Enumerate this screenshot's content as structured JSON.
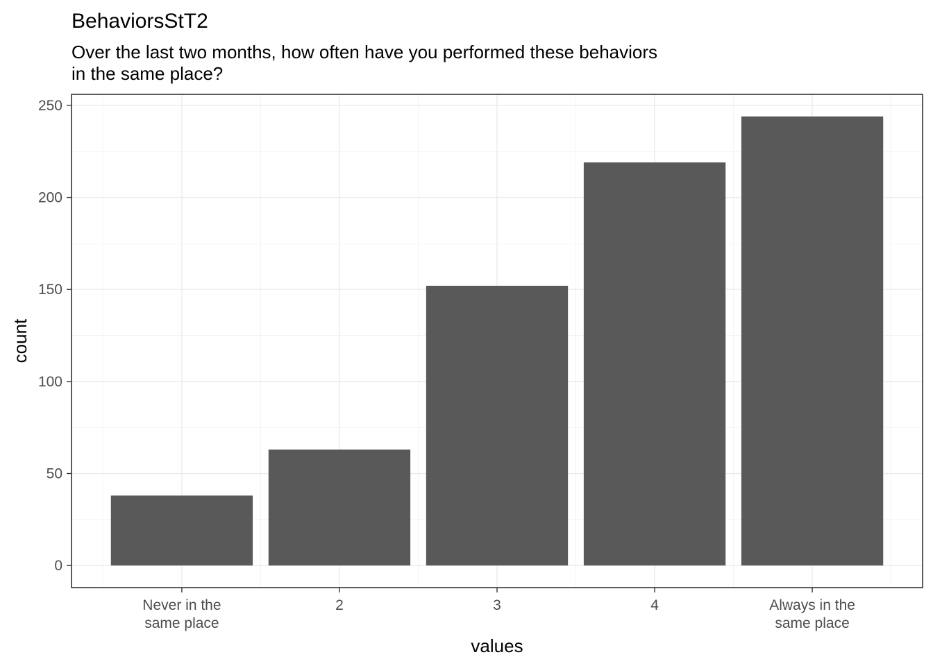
{
  "chart_data": {
    "type": "bar",
    "title": "BehaviorsStT2",
    "subtitle": [
      "Over the last two months, how often have you performed these behaviors",
      "in the same place?"
    ],
    "xlabel": "values",
    "ylabel": "count",
    "categories": [
      [
        "Never in the",
        "same place"
      ],
      [
        "2"
      ],
      [
        "3"
      ],
      [
        "4"
      ],
      [
        "Always in the",
        "same place"
      ]
    ],
    "values": [
      38,
      63,
      152,
      219,
      244
    ],
    "ylim": [
      -12,
      256
    ],
    "yticks": [
      0,
      50,
      100,
      150,
      200,
      250
    ],
    "grid": true,
    "bar_color": "#595959",
    "theme": "bw"
  }
}
